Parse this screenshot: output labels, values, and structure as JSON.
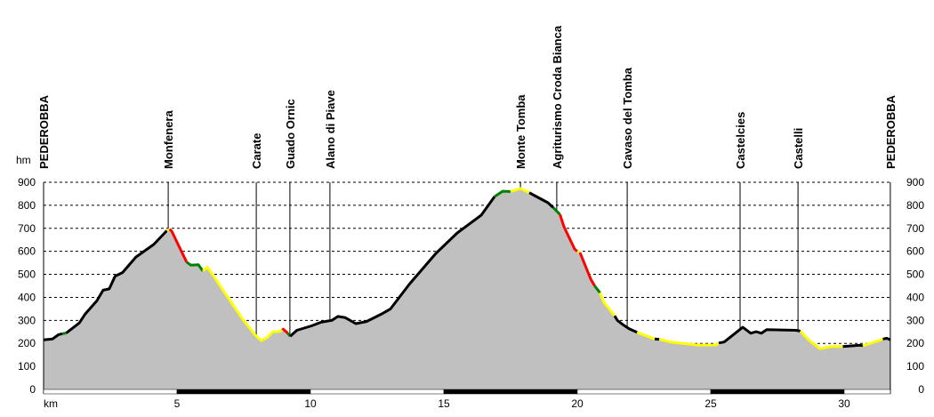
{
  "chart_data": {
    "type": "area",
    "title": "",
    "xlabel": "km",
    "ylabel": "hm",
    "xlim": [
      0,
      31.73
    ],
    "ylim": [
      0,
      900
    ],
    "yticks": [
      0,
      100,
      200,
      300,
      400,
      500,
      600,
      700,
      800,
      900
    ],
    "xticks": [
      5,
      10,
      15,
      20,
      25,
      30
    ],
    "grid": true,
    "colors": {
      "fill": "#c0c0c0",
      "black": "#000000",
      "green": "#008000",
      "red": "#ff0000",
      "yellow": "#ffff00"
    },
    "segments": [
      {
        "color": "black",
        "points": [
          [
            0,
            215
          ],
          [
            0.33,
            219
          ],
          [
            0.56,
            238
          ],
          [
            0.7,
            242
          ]
        ]
      },
      {
        "color": "green",
        "points": [
          [
            0.7,
            242
          ],
          [
            0.85,
            245
          ]
        ]
      },
      {
        "color": "black",
        "points": [
          [
            0.85,
            245
          ],
          [
            1.34,
            289
          ],
          [
            1.56,
            328
          ],
          [
            2.0,
            386
          ],
          [
            2.23,
            431
          ],
          [
            2.46,
            437
          ],
          [
            2.68,
            492
          ],
          [
            2.96,
            508
          ],
          [
            3.46,
            575
          ],
          [
            4.13,
            630
          ],
          [
            4.62,
            690
          ]
        ]
      },
      {
        "color": "yellow",
        "points": [
          [
            4.62,
            690
          ],
          [
            4.72,
            696
          ]
        ]
      },
      {
        "color": "red",
        "points": [
          [
            4.72,
            696
          ],
          [
            4.8,
            688
          ],
          [
            5.36,
            553
          ]
        ]
      },
      {
        "color": "green",
        "points": [
          [
            5.36,
            553
          ],
          [
            5.52,
            540
          ],
          [
            5.8,
            542
          ],
          [
            5.97,
            514
          ]
        ]
      },
      {
        "color": "yellow",
        "points": [
          [
            5.97,
            514
          ],
          [
            6.14,
            531
          ],
          [
            6.36,
            495
          ],
          [
            6.8,
            418
          ],
          [
            7.48,
            302
          ],
          [
            7.92,
            238
          ],
          [
            8.15,
            212
          ],
          [
            8.37,
            225
          ],
          [
            8.59,
            251
          ],
          [
            8.82,
            251
          ],
          [
            8.95,
            258
          ]
        ]
      },
      {
        "color": "red",
        "points": [
          [
            8.95,
            258
          ],
          [
            8.98,
            262
          ],
          [
            9.15,
            244
          ]
        ]
      },
      {
        "color": "green",
        "points": [
          [
            9.15,
            244
          ],
          [
            9.24,
            231
          ]
        ]
      },
      {
        "color": "black",
        "points": [
          [
            9.24,
            231
          ],
          [
            9.49,
            257
          ],
          [
            10.04,
            276
          ],
          [
            10.4,
            292
          ],
          [
            10.8,
            300
          ],
          [
            11.03,
            317
          ],
          [
            11.3,
            312
          ],
          [
            11.7,
            286
          ],
          [
            12.1,
            295
          ],
          [
            12.7,
            330
          ],
          [
            13.0,
            350
          ],
          [
            13.7,
            456
          ],
          [
            14.7,
            591
          ],
          [
            15.5,
            680
          ],
          [
            16.4,
            757
          ],
          [
            16.9,
            838
          ]
        ]
      },
      {
        "color": "green",
        "points": [
          [
            16.9,
            838
          ],
          [
            17.2,
            861
          ],
          [
            17.5,
            860
          ]
        ]
      },
      {
        "color": "yellow",
        "points": [
          [
            17.5,
            860
          ],
          [
            17.87,
            873
          ],
          [
            18.2,
            855
          ]
        ]
      },
      {
        "color": "black",
        "points": [
          [
            18.2,
            855
          ],
          [
            18.4,
            842
          ],
          [
            18.9,
            811
          ],
          [
            19.1,
            790
          ]
        ]
      },
      {
        "color": "green",
        "points": [
          [
            19.1,
            790
          ],
          [
            19.35,
            760
          ]
        ]
      },
      {
        "color": "red",
        "points": [
          [
            19.35,
            760
          ],
          [
            19.5,
            707
          ],
          [
            19.9,
            610
          ],
          [
            20.0,
            600
          ]
        ]
      },
      {
        "color": "yellow",
        "points": [
          [
            20.0,
            600
          ],
          [
            20.1,
            595
          ]
        ]
      },
      {
        "color": "red",
        "points": [
          [
            20.1,
            595
          ],
          [
            20.5,
            480
          ],
          [
            20.65,
            450
          ]
        ]
      },
      {
        "color": "green",
        "points": [
          [
            20.65,
            450
          ],
          [
            20.85,
            420
          ]
        ]
      },
      {
        "color": "yellow",
        "points": [
          [
            20.85,
            420
          ],
          [
            21.0,
            378
          ],
          [
            21.4,
            320
          ]
        ]
      },
      {
        "color": "black",
        "points": [
          [
            21.4,
            320
          ],
          [
            21.5,
            300
          ],
          [
            21.74,
            279
          ],
          [
            21.95,
            263
          ],
          [
            22.24,
            248
          ]
        ]
      },
      {
        "color": "yellow",
        "points": [
          [
            22.24,
            248
          ],
          [
            22.9,
            219
          ]
        ]
      },
      {
        "color": "black",
        "points": [
          [
            22.9,
            219
          ],
          [
            23.07,
            218
          ]
        ]
      },
      {
        "color": "yellow",
        "points": [
          [
            23.07,
            218
          ],
          [
            23.5,
            206
          ],
          [
            24.5,
            193
          ],
          [
            25.2,
            193
          ],
          [
            25.3,
            202
          ]
        ]
      },
      {
        "color": "black",
        "points": [
          [
            25.3,
            202
          ],
          [
            25.5,
            206
          ],
          [
            26.2,
            270
          ],
          [
            26.5,
            244
          ],
          [
            26.7,
            251
          ],
          [
            26.9,
            244
          ],
          [
            27.1,
            260
          ],
          [
            28.2,
            257
          ],
          [
            28.36,
            253
          ]
        ]
      },
      {
        "color": "yellow",
        "points": [
          [
            28.36,
            253
          ],
          [
            28.7,
            212
          ],
          [
            29.1,
            177
          ],
          [
            29.5,
            186
          ],
          [
            29.95,
            186
          ]
        ]
      },
      {
        "color": "black",
        "points": [
          [
            29.95,
            186
          ],
          [
            30.6,
            192
          ],
          [
            30.7,
            190
          ]
        ]
      },
      {
        "color": "yellow",
        "points": [
          [
            30.7,
            190
          ],
          [
            31.3,
            212
          ],
          [
            31.45,
            219
          ]
        ]
      },
      {
        "color": "black",
        "points": [
          [
            31.45,
            219
          ],
          [
            31.6,
            222
          ],
          [
            31.73,
            216
          ]
        ]
      }
    ],
    "waypoints": [
      {
        "name": "PEDEROBBA",
        "km": 0,
        "line": false
      },
      {
        "name": "Monfenera",
        "km": 4.67,
        "line": true
      },
      {
        "name": "Carate",
        "km": 7.97,
        "line": true
      },
      {
        "name": "Guado Ornic",
        "km": 9.23,
        "line": true
      },
      {
        "name": "Alano di Piave",
        "km": 10.73,
        "line": true
      },
      {
        "name": "Monte Tomba",
        "km": 17.87,
        "line": true
      },
      {
        "name": "Agriturismo Croda Bianca",
        "km": 19.23,
        "line": true
      },
      {
        "name": "Cavaso del Tomba",
        "km": 21.87,
        "line": true
      },
      {
        "name": "Castelcies",
        "km": 26.1,
        "line": true
      },
      {
        "name": "Castelli",
        "km": 28.27,
        "line": true
      },
      {
        "name": "PEDEROBBA",
        "km": 31.73,
        "line": false
      }
    ]
  }
}
